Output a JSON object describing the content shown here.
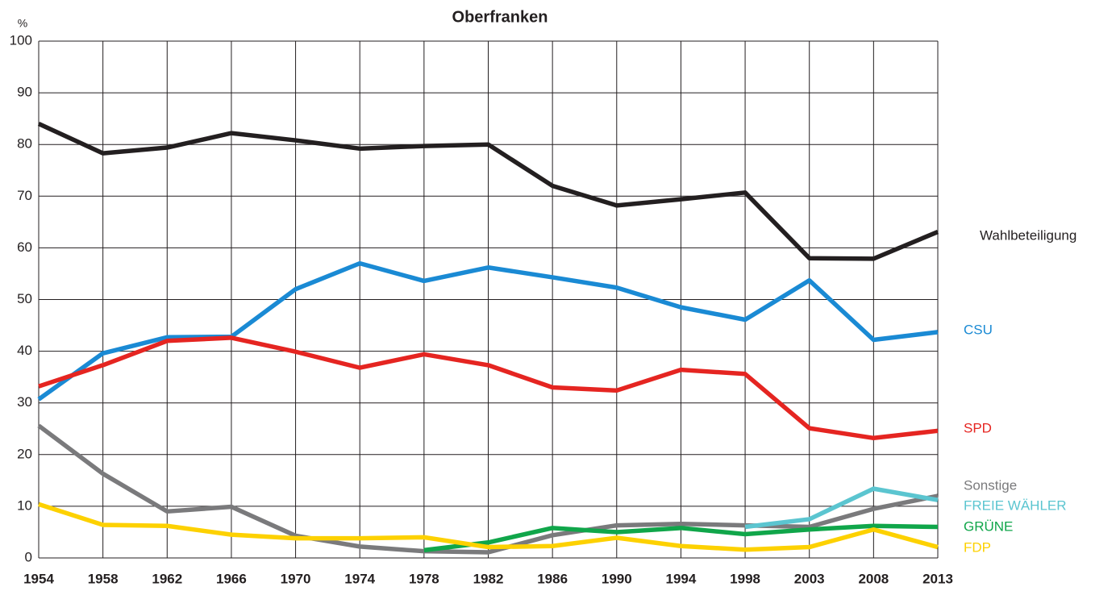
{
  "chart_data": {
    "type": "line",
    "title": "Oberfranken",
    "y_label": "%",
    "categories": [
      "1954",
      "1958",
      "1962",
      "1966",
      "1970",
      "1974",
      "1978",
      "1982",
      "1986",
      "1990",
      "1994",
      "1998",
      "2003",
      "2008",
      "2013"
    ],
    "ylim": [
      0,
      100
    ],
    "yticks": [
      0,
      10,
      20,
      30,
      40,
      50,
      60,
      70,
      80,
      90,
      100
    ],
    "grid": true,
    "series": [
      {
        "name": "Wahlbeteiligung",
        "color": "#231f20",
        "values": [
          84,
          78.3,
          79.4,
          82.2,
          80.8,
          79.2,
          79.7,
          80,
          72,
          68.2,
          69.4,
          70.7,
          58,
          57.9,
          63.1
        ]
      },
      {
        "name": "CSU",
        "color": "#1a8ad4",
        "values": [
          30.7,
          39.6,
          42.7,
          42.8,
          52,
          57,
          53.6,
          56.2,
          54.3,
          52.3,
          48.5,
          46.1,
          53.7,
          42.2,
          43.7
        ]
      },
      {
        "name": "SPD",
        "color": "#e52521",
        "values": [
          33.2,
          37.3,
          42,
          42.6,
          39.9,
          36.8,
          39.4,
          37.3,
          33,
          32.4,
          36.4,
          35.6,
          25.1,
          23.2,
          24.6
        ]
      },
      {
        "name": "Sonstige",
        "color": "#7a7a7c",
        "values": [
          25.6,
          16.3,
          9,
          9.9,
          4.3,
          2.2,
          1.3,
          1.1,
          4.4,
          6.3,
          6.6,
          6.3,
          6,
          9.5,
          12
        ]
      },
      {
        "name": "FREIE WÄHLER",
        "color": "#5bc5d0",
        "values": [
          null,
          null,
          null,
          null,
          null,
          null,
          null,
          null,
          null,
          null,
          null,
          6,
          7.5,
          13.4,
          11.2
        ]
      },
      {
        "name": "GRÜNE",
        "color": "#10a64a",
        "values": [
          null,
          null,
          null,
          null,
          null,
          null,
          1.5,
          3,
          5.8,
          5,
          5.8,
          4.6,
          5.5,
          6.2,
          6
        ]
      },
      {
        "name": "FDP",
        "color": "#fdd100",
        "values": [
          10.4,
          6.4,
          6.2,
          4.5,
          3.8,
          3.8,
          4,
          2.1,
          2.3,
          3.9,
          2.3,
          1.6,
          2.1,
          5.5,
          2.1
        ]
      }
    ]
  }
}
